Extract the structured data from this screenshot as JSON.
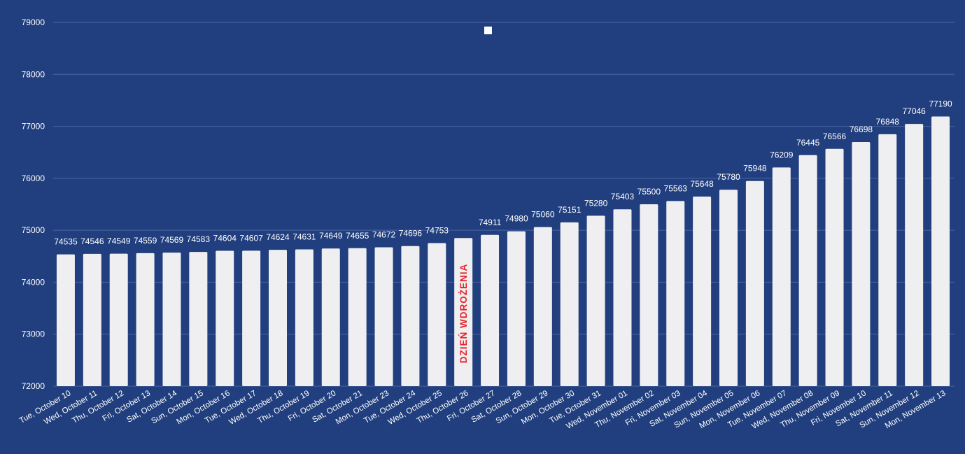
{
  "chart_data": {
    "type": "bar",
    "title": "",
    "xlabel": "",
    "ylabel": "",
    "ylim": [
      72000,
      79000
    ],
    "yticks": [
      72000,
      73000,
      74000,
      75000,
      76000,
      77000,
      78000,
      79000
    ],
    "grid": true,
    "legend": "top-center",
    "categories": [
      "Tue, October 10",
      "Wed, October 11",
      "Thu, October 12",
      "Fri, October 13",
      "Sat, October 14",
      "Sun, October 15",
      "Mon, October 16",
      "Tue, October 17",
      "Wed, October 18",
      "Thu, October 19",
      "Fri, October 20",
      "Sat, October 21",
      "Mon, October 23",
      "Tue, October 24",
      "Wed, October 25",
      "Thu, October 26",
      "Fri, October 27",
      "Sat, October 28",
      "Sun, October 29",
      "Mon, October 30",
      "Tue, October 31",
      "Wed, November 01",
      "Thu, November 02",
      "Fri, November 03",
      "Sat, November 04",
      "Sun, November 05",
      "Mon, November 06",
      "Tue, November 07",
      "Wed, November 08",
      "Thu, November 09",
      "Fri, November 10",
      "Sat, November 11",
      "Sun, November 12",
      "Mon, November 13"
    ],
    "series": [
      {
        "values": [
          74535,
          74546,
          74549,
          74559,
          74569,
          74583,
          74604,
          74607,
          74624,
          74631,
          74649,
          74655,
          74672,
          74696,
          74753,
          74851,
          74911,
          74980,
          75060,
          75151,
          75280,
          75403,
          75500,
          75563,
          75648,
          75780,
          75948,
          76209,
          76445,
          76566,
          76698,
          76848,
          77046,
          77190
        ],
        "data_labels": [
          "74535",
          "74546",
          "74549",
          "74559",
          "74569",
          "74583",
          "74604",
          "74607",
          "74624",
          "74631",
          "74649",
          "74655",
          "74672",
          "74696",
          "74753",
          "",
          "74911",
          "74980",
          "75060",
          "75151",
          "75280",
          "75403",
          "75500",
          "75563",
          "75648",
          "75780",
          "75948",
          "76209",
          "76445",
          "76566",
          "76698",
          "76848",
          "77046",
          "77190"
        ]
      }
    ],
    "annotations": [
      {
        "category": "Thu, October 26",
        "value": 74851,
        "text": "DZIEŃ WDROŻENIA"
      }
    ],
    "colors": {
      "background": "#213f7e",
      "bar": "#efeff1",
      "grid": "#4a64a0",
      "text": "#ffffff",
      "annotation": "#e8232a"
    }
  }
}
